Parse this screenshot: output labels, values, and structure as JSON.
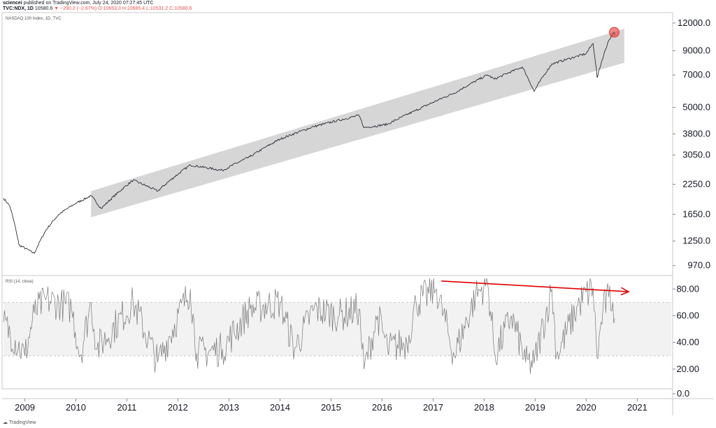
{
  "header": {
    "user": "sciencei",
    "published": "published on TradingView.com, July 24, 2020 07:27:45 UTC",
    "symbol": "TVC:NDX, 1D",
    "last": "10580.6",
    "change": "▼ −290.2 (−2.67%)",
    "open": "O:10653.3",
    "high": "H:10685.4",
    "low": "L:10531.2",
    "close": "C:10580.6"
  },
  "footer": {
    "brand": "TradingView"
  },
  "colors": {
    "price_line": "#131722",
    "channel_fill": "#d6d6d6",
    "rsi_line": "#787878",
    "rsi_band": "#f2f2f2",
    "arrow": "#e00000",
    "highlight": "#e53935"
  },
  "chart_data": [
    {
      "type": "line",
      "title": "NASDAQ 100 Index, 1D, TVC",
      "scale": "log",
      "ylim": [
        900,
        12800
      ],
      "yticks": [
        970,
        1250,
        1650,
        2250,
        3050,
        3800,
        5000,
        7000,
        9000,
        12000
      ],
      "ytick_labels": [
        "970.0",
        "1250.0",
        "1650.0",
        "2250.0",
        "3050.0",
        "3800.0",
        "5000.0",
        "7000.0",
        "9000.0",
        "12000.0"
      ],
      "xlim": [
        "2008-08-01",
        "2021-09-01"
      ],
      "xticks": [
        "2009-01-01",
        "2010-01-01",
        "2011-01-01",
        "2012-01-01",
        "2013-01-01",
        "2014-01-01",
        "2015-01-01",
        "2016-01-01",
        "2017-01-01",
        "2018-01-01",
        "2019-01-01",
        "2020-01-01",
        "2021-01-01"
      ],
      "xtick_labels": [
        "2009",
        "2010",
        "2011",
        "2012",
        "2013",
        "2014",
        "2015",
        "2016",
        "2017",
        "2018",
        "2019",
        "2020",
        "2021"
      ],
      "series": [
        {
          "x": [
            "2008-08-01",
            "2008-09-15",
            "2008-11-20",
            "2009-03-09",
            "2009-06-01",
            "2009-09-01",
            "2010-01-01",
            "2010-04-20",
            "2010-07-01",
            "2011-02-15",
            "2011-08-10",
            "2012-03-30",
            "2012-11-15",
            "2013-06-01",
            "2014-01-01",
            "2014-09-01",
            "2015-07-20",
            "2015-08-25",
            "2016-02-10",
            "2016-09-01",
            "2017-06-01",
            "2018-01-26",
            "2018-03-15",
            "2018-10-01",
            "2018-12-24",
            "2019-05-01",
            "2019-12-31",
            "2020-02-19",
            "2020-03-20",
            "2020-06-10",
            "2020-07-20",
            "2020-07-23"
          ],
          "values": [
            1950,
            1800,
            1200,
            1100,
            1400,
            1650,
            1850,
            2000,
            1750,
            2350,
            2100,
            2750,
            2600,
            3000,
            3600,
            4100,
            4600,
            4050,
            4200,
            4850,
            5800,
            7000,
            6700,
            7600,
            5900,
            7850,
            8730,
            9700,
            6800,
            10000,
            10900,
            10580
          ]
        }
      ],
      "annotations": [
        {
          "type": "channel",
          "x_start": "2010-04-20",
          "x_end": "2020-09-30",
          "lower_start": 1600,
          "upper_start": 2100,
          "lower_end": 7950,
          "upper_end": 11300
        },
        {
          "type": "marker",
          "x": "2020-07-20",
          "y": 10900
        }
      ]
    },
    {
      "type": "line",
      "title": "RSI (14, close)",
      "ylim": [
        0,
        88
      ],
      "yticks": [
        0,
        20,
        40,
        60,
        80
      ],
      "ytick_labels": [
        "0.0",
        "20.00",
        "40.00",
        "60.00",
        "80.00"
      ],
      "band": [
        30,
        70
      ],
      "series": [
        {
          "x": [
            "2008-08-01",
            "2009-01-01",
            "2009-03-09",
            "2009-06-01",
            "2009-12-01",
            "2010-02-01",
            "2010-04-20",
            "2010-06-01",
            "2011-02-15",
            "2011-08-10",
            "2012-03-30",
            "2012-05-15",
            "2012-11-15",
            "2013-06-01",
            "2014-01-01",
            "2014-04-15",
            "2014-09-01",
            "2015-03-01",
            "2015-07-20",
            "2015-08-25",
            "2015-12-01",
            "2016-02-10",
            "2016-06-27",
            "2016-09-01",
            "2017-01-25",
            "2017-06-01",
            "2017-11-01",
            "2018-01-26",
            "2018-03-20",
            "2018-07-15",
            "2018-10-25",
            "2018-12-24",
            "2019-05-01",
            "2019-06-03",
            "2019-11-15",
            "2020-02-19",
            "2020-03-20",
            "2020-04-30",
            "2020-06-10",
            "2020-07-10",
            "2020-07-23"
          ],
          "values": [
            55,
            30,
            62,
            72,
            66,
            30,
            70,
            35,
            70,
            25,
            80,
            32,
            35,
            65,
            70,
            35,
            65,
            60,
            65,
            20,
            60,
            35,
            40,
            70,
            80,
            30,
            75,
            85,
            30,
            60,
            25,
            24,
            80,
            30,
            70,
            81,
            28,
            65,
            74,
            70,
            58
          ]
        }
      ],
      "annotations": [
        {
          "type": "trendline",
          "x1": "2017-03-01",
          "y1": 86,
          "x2": "2020-10-31",
          "y2": 78
        }
      ]
    }
  ]
}
